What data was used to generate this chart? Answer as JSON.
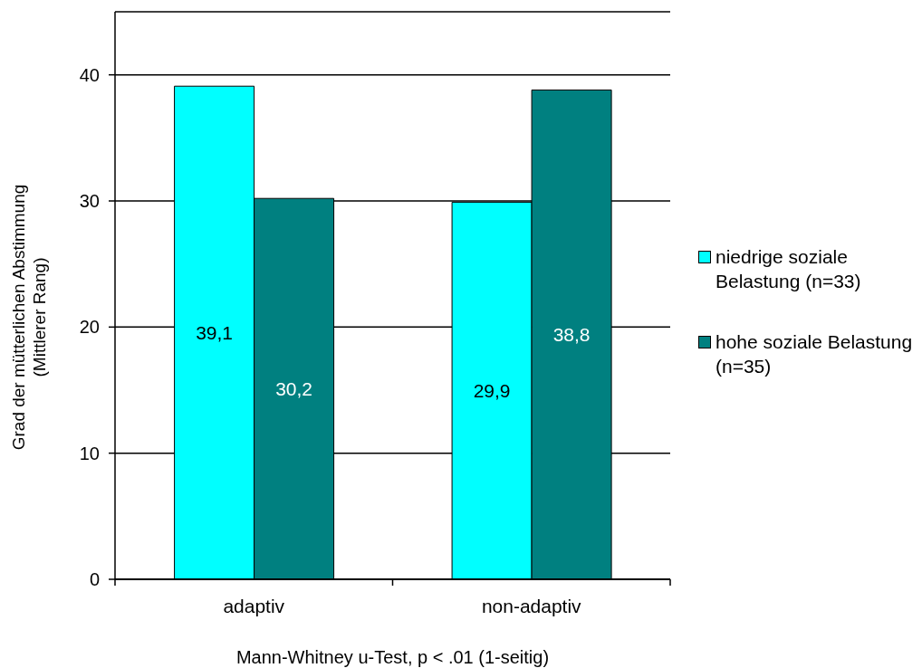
{
  "chart_data": {
    "type": "bar",
    "ylabel": "Grad der mütterlichen Abstimmung (Mittlerer Rang)",
    "xlabel": "Mann-Whitney u-Test, p < .01 (1-seitig)",
    "categories": [
      "adaptiv",
      "non-adaptiv"
    ],
    "series": [
      {
        "name": "niedrige soziale Belastung (n=33)",
        "color": "#00ffff",
        "values": [
          39.1,
          29.9
        ],
        "value_labels": [
          "39,1",
          "29,9"
        ]
      },
      {
        "name": "hohe soziale Belastung (n=35)",
        "color": "#008080",
        "values": [
          30.2,
          38.8
        ],
        "value_labels": [
          "30,2",
          "38,8"
        ]
      }
    ],
    "ylim": [
      0,
      45
    ],
    "yticks": [
      0,
      10,
      20,
      30,
      40
    ],
    "grid": "y",
    "legend": "right"
  }
}
